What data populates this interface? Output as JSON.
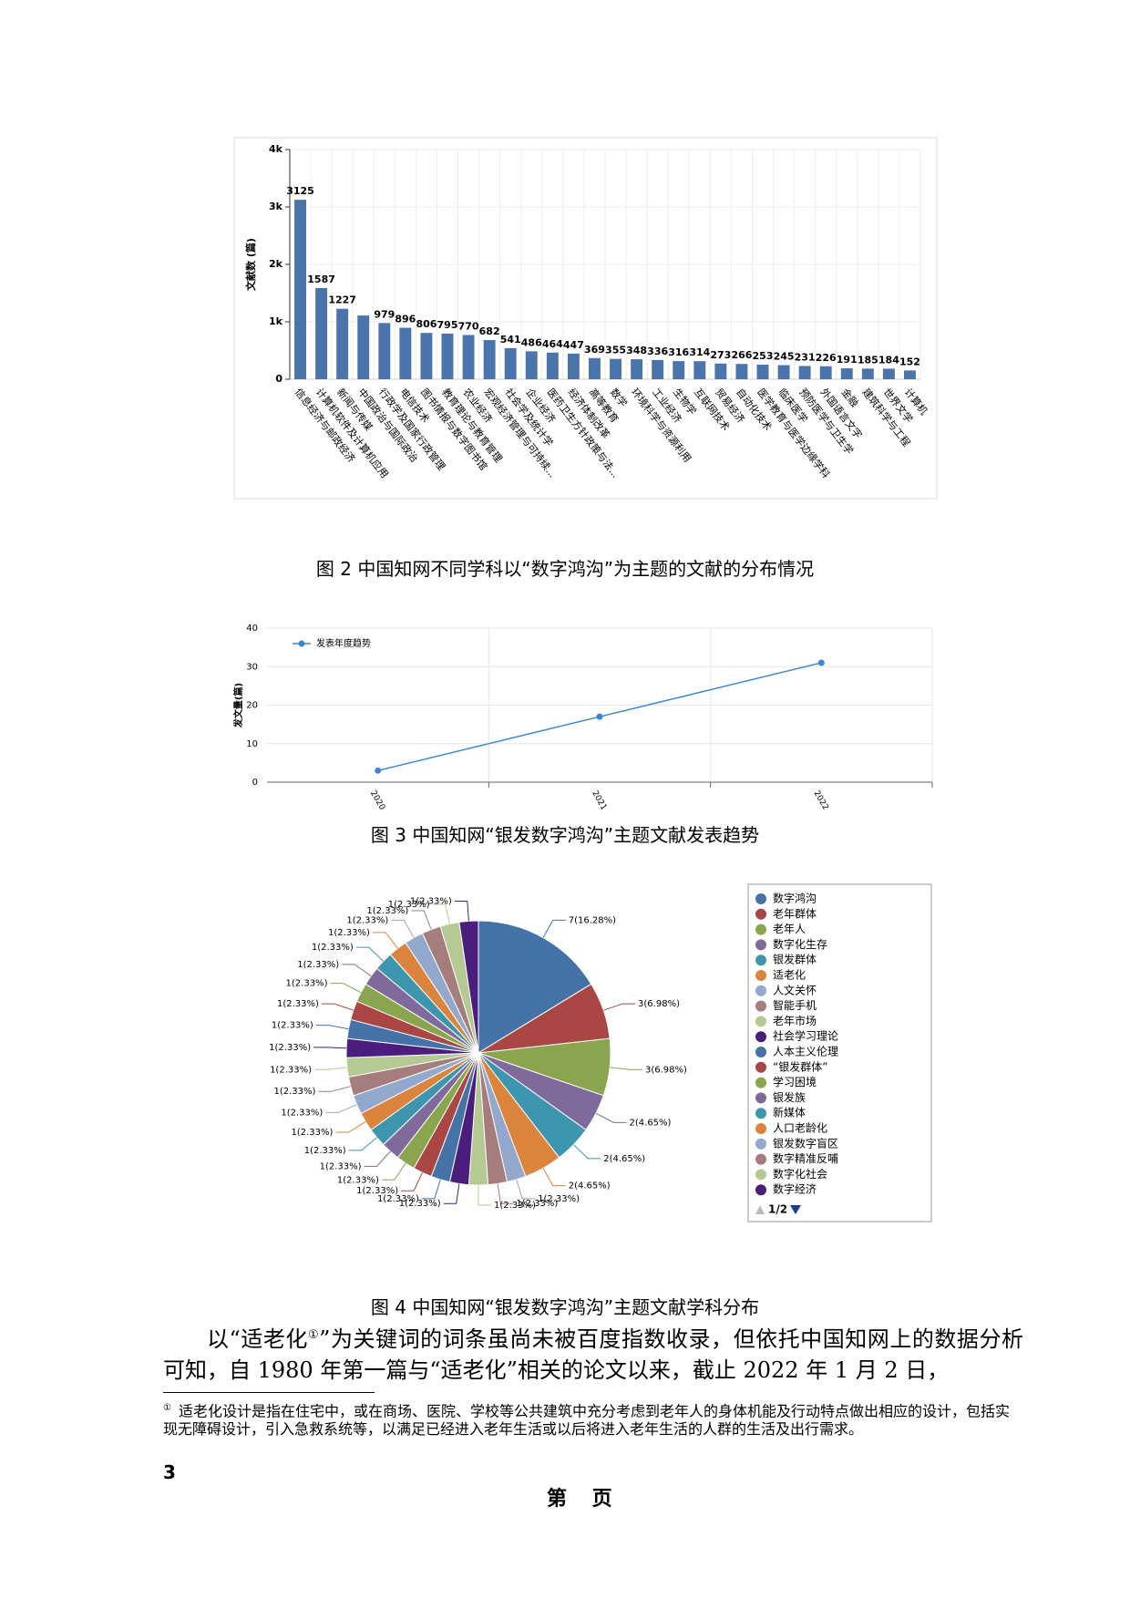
{
  "chart_data": [
    {
      "type": "bar",
      "y_label": "文献数 (篇)",
      "categories": [
        "信息经济与邮政经济",
        "计算机软件及计算机应用",
        "新闻与传媒",
        "中国政治与国际政治",
        "行政学及国家行政管理",
        "电信技术",
        "图书情报与数字图书馆",
        "教育理论与教育管理",
        "农业经济",
        "宏观经济管理与可持续...",
        "社会学及统计学",
        "企业经济",
        "医药卫生方针政策与法...",
        "经济体制改革",
        "高等教育",
        "数学",
        "环境科学与资源利用",
        "工业经济",
        "生物学",
        "互联网技术",
        "贸易经济",
        "自动化技术",
        "医学教育与医学边缘学科",
        "临床医学",
        "预防医学与卫生学",
        "外国语言文字",
        "金融",
        "建筑科学与工程",
        "世界文学",
        "计算机"
      ],
      "values": [
        3125,
        1587,
        1227,
        1110,
        979,
        896,
        806,
        795,
        770,
        682,
        541,
        486,
        464,
        447,
        369,
        355,
        348,
        336,
        316,
        314,
        273,
        266,
        253,
        245,
        231,
        226,
        191,
        185,
        184,
        152
      ],
      "value_labels": [
        "3125",
        "1587",
        "1227",
        null,
        "979",
        "896",
        "806",
        "795",
        "770",
        "682",
        "541",
        "486",
        "464",
        "447",
        "369",
        "355",
        "348",
        "336",
        "316",
        "314",
        "273",
        "266",
        "253",
        "245",
        "231",
        "226",
        "191",
        "185",
        "184",
        "152"
      ],
      "color": "#4a74ac",
      "ylim": [
        0,
        4000
      ],
      "yticks": [
        0,
        {
          "value": 1000,
          "label": "1k"
        },
        {
          "value": 2000,
          "label": "2k"
        },
        {
          "value": 3000,
          "label": "3k"
        },
        {
          "value": 4000,
          "label": "4k"
        }
      ],
      "grid": true
    },
    {
      "type": "line",
      "y_label": "发文量(篇)",
      "categories": [
        "2020",
        "2021",
        "2022"
      ],
      "series": [
        {
          "name": "发表年度趋势",
          "color": "#3a86d4",
          "values": [
            3,
            17,
            31
          ]
        }
      ],
      "ylim": [
        0,
        40
      ],
      "yticks": [
        0,
        10,
        20,
        30,
        40
      ],
      "grid": true,
      "legend": "top-left"
    },
    {
      "type": "pie",
      "categories": [
        "数字鸿沟",
        "老年群体",
        "老年人",
        "数字化生存",
        "银发群体",
        "适老化",
        "人文关怀",
        "智能手机",
        "老年市场",
        "社会学习理论",
        "人本主义伦理",
        "“银发群体”",
        "学习困境",
        "银发族",
        "新媒体",
        "人口老龄化",
        "银发数字盲区",
        "数字精准反哺",
        "数字化社会",
        "数字经济",
        null,
        null,
        null,
        null,
        null,
        null,
        null,
        null,
        null,
        null
      ],
      "values": [
        7,
        3,
        3,
        2,
        2,
        2,
        1,
        1,
        1,
        1,
        1,
        1,
        1,
        1,
        1,
        1,
        1,
        1,
        1,
        1,
        1,
        1,
        1,
        1,
        1,
        1,
        1,
        1,
        1,
        1
      ],
      "value_labels": [
        "7(16.28%)",
        "3(6.98%)",
        "3(6.98%)",
        "2(4.65%)",
        "2(4.65%)",
        "2(4.65%)",
        "1(2.33%)",
        "1(2.33%)",
        "1(2.33%)",
        "1(2.33%)",
        "1(2.33%)",
        "1(2.33%)",
        "1(2.33%)",
        "1(2.33%)",
        "1(2.33%)",
        "1(2.33%)",
        "1(2.33%)",
        "1(2.33%)",
        "1(2.33%)",
        "1(2.33%)",
        "1(2.33%)",
        "1(2.33%)",
        "1(2.33%)",
        "1(2.33%)",
        "1(2.33%)",
        "1(2.33%)",
        "1(2.33%)",
        "1(2.33%)",
        "1(2.33%)",
        "1(2.33%)"
      ],
      "colors": [
        "#4572a7",
        "#aa4643",
        "#89a54e",
        "#80699b",
        "#3d96ae",
        "#db843d",
        "#92a8cd",
        "#a47d7c",
        "#b5ca92",
        "#4b1e7e"
      ],
      "legend": "right",
      "legend_page": "1/2"
    }
  ],
  "captions": [
    "图 2 中国知网不同学科以“数字鸿沟”为主题的文献的分布情况",
    "图 3 中国知网“银发数字鸿沟”主题文献发表趋势",
    "图 4 中国知网“银发数字鸿沟”主题文献学科分布"
  ],
  "paragraph": {
    "text_before": "以“适老化",
    "footnote_mark": "①",
    "text_after": "”为关键词的词条虽尚未被百度指数收录，但依托中国知网上的数据分析可知，自 1980 年第一篇与“适老化”相关的论文以来，截止 2022 年 1 月 2 日，"
  },
  "footnote": {
    "mark": "①",
    "text": "适老化设计是指在住宅中，或在商场、医院、学校等公共建筑中充分考虑到老年人的身体机能及行动特点做出相应的设计，包括实现无障碍设计，引入急救系统等，以满足已经进入老年生活或以后将进入老年生活的人群的生活及出行需求。"
  },
  "page_number": "3",
  "footer": "第 页"
}
